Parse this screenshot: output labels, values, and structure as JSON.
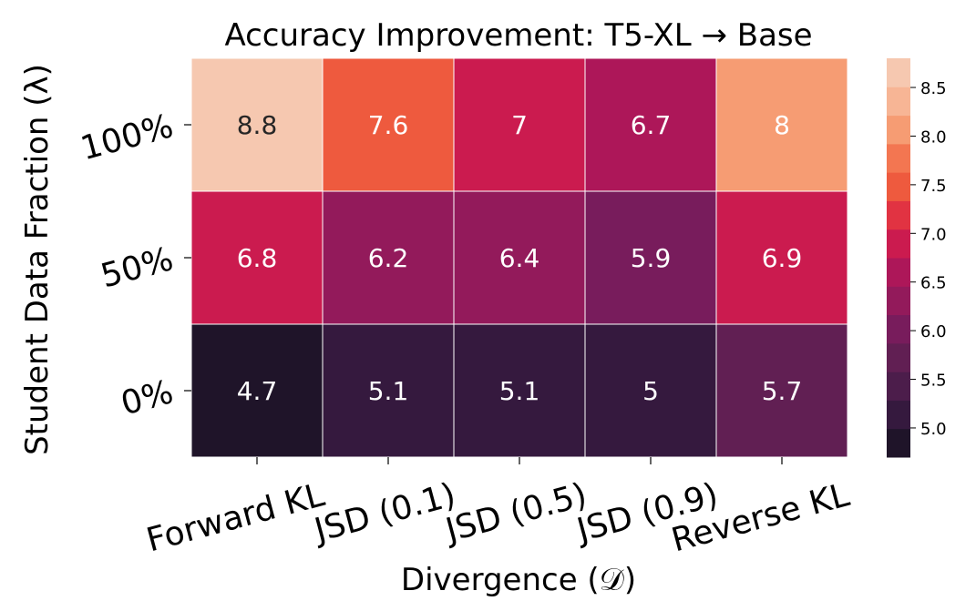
{
  "chart_data": {
    "type": "heatmap",
    "title": "Accuracy Improvement: T5-XL → Base",
    "xlabel": "Divergence (𝒟)",
    "ylabel": "Student Data Fraction (λ)",
    "x_categories": [
      "Forward KL",
      "JSD (0.1)",
      "JSD (0.5)",
      "JSD (0.9)",
      "Reverse KL"
    ],
    "y_categories": [
      "100%",
      "50%",
      "0%"
    ],
    "values": [
      [
        8.8,
        7.6,
        7,
        6.7,
        8
      ],
      [
        6.8,
        6.2,
        6.4,
        5.9,
        6.9
      ],
      [
        4.7,
        5.1,
        5.1,
        5,
        5.7
      ]
    ],
    "value_labels": [
      [
        "8.8",
        "7.6",
        "7",
        "6.7",
        "8"
      ],
      [
        "6.8",
        "6.2",
        "6.4",
        "5.9",
        "6.9"
      ],
      [
        "4.7",
        "5.1",
        "5.1",
        "5",
        "5.7"
      ]
    ],
    "colorbar": {
      "min": 4.7,
      "max": 8.8,
      "ticks": [
        "5.0",
        "5.5",
        "6.0",
        "6.5",
        "7.0",
        "7.5",
        "8.0",
        "8.5"
      ],
      "tick_values": [
        5.0,
        5.5,
        6.0,
        6.5,
        7.0,
        7.5,
        8.0,
        8.5
      ],
      "colors": [
        "#1f1429",
        "#35193e",
        "#4c1d4b",
        "#611f53",
        "#781c5c",
        "#931a5b",
        "#ad1759",
        "#cb1b4f",
        "#e13342",
        "#ee5a3e",
        "#f37651",
        "#f69c73",
        "#f7b595",
        "#f6c8b0"
      ]
    },
    "legend": "right"
  }
}
